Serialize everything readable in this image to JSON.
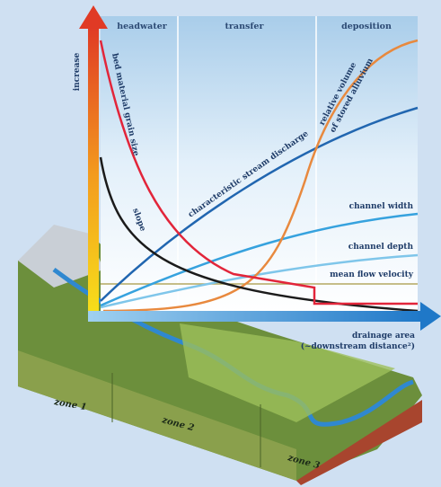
{
  "header": {
    "zones": [
      "headwater",
      "transfer",
      "deposition"
    ],
    "y_axis": "increase"
  },
  "curves": {
    "bed_material": "bed material grain size",
    "slope": "slope",
    "discharge": "characteristic stream discharge",
    "alluvium": [
      "relative volume",
      "of stored alluvium"
    ],
    "width": "channel width",
    "depth": "channel depth",
    "velocity": "mean flow velocity"
  },
  "x_axis": [
    "drainage area",
    "(~downstream distance²)"
  ],
  "landscape": {
    "zones": [
      "zone 1",
      "zone 2",
      "zone 3"
    ]
  }
}
